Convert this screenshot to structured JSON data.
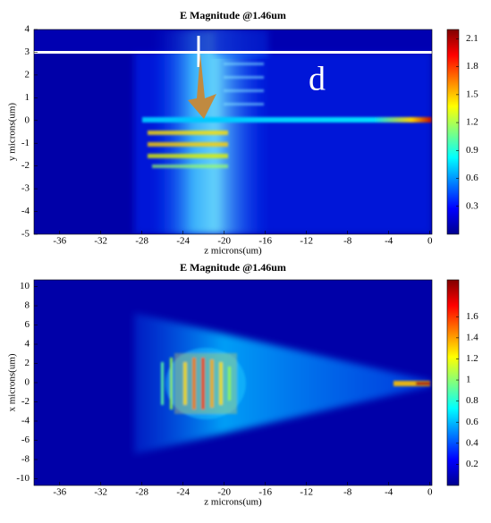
{
  "chart_data": [
    {
      "type": "heatmap",
      "title": "E Magnitude @1.46um",
      "xlabel": "z microns(um)",
      "ylabel": "y microns(um)",
      "xlim": [
        -38.5,
        0.2
      ],
      "xticks": [
        -36,
        -32,
        -28,
        -24,
        -20,
        -16,
        -12,
        -8,
        -4,
        0
      ],
      "ylim": [
        -5,
        4
      ],
      "yticks": [
        4,
        3,
        2,
        1,
        0,
        -1,
        -2,
        -3,
        -4,
        -5
      ],
      "colorbar": {
        "lim": [
          0,
          2.2
        ],
        "ticks": [
          0.3,
          0.6,
          0.9,
          1.2,
          1.5,
          1.8,
          2.1
        ]
      },
      "annotation": "d"
    },
    {
      "type": "heatmap",
      "title": "E Magnitude @1.46um",
      "xlabel": "z microns(um)",
      "ylabel": "x microns(um)",
      "xlim": [
        -38.5,
        0.2
      ],
      "xticks": [
        -36,
        -32,
        -28,
        -24,
        -20,
        -16,
        -12,
        -8,
        -4,
        0
      ],
      "ylim": [
        -10.7,
        10.7
      ],
      "yticks": [
        10,
        8,
        6,
        4,
        2,
        0,
        -2,
        -4,
        -6,
        -8,
        -10
      ],
      "colorbar": {
        "lim": [
          0,
          1.95
        ],
        "ticks": [
          0.2,
          0.4,
          0.6,
          0.8,
          1,
          1.2,
          1.4,
          1.6
        ]
      }
    }
  ]
}
